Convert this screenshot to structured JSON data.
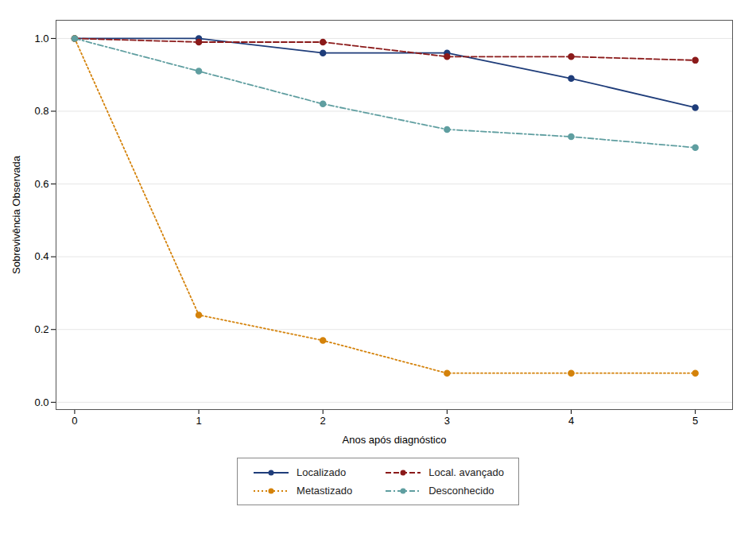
{
  "chart_data": {
    "type": "line",
    "x": [
      0,
      1,
      2,
      3,
      4,
      5
    ],
    "series": [
      {
        "name": "Localizado",
        "color": "#1f3d7a",
        "line_style": "solid",
        "marker": "circle",
        "values": [
          1.0,
          1.0,
          0.96,
          0.96,
          0.89,
          0.81
        ]
      },
      {
        "name": "Local. avançado",
        "color": "#8b1a1a",
        "line_style": "dashed",
        "marker": "circle",
        "values": [
          1.0,
          0.99,
          0.99,
          0.95,
          0.95,
          0.94
        ]
      },
      {
        "name": "Metastizado",
        "color": "#d4820a",
        "line_style": "dotted",
        "marker": "circle",
        "values": [
          1.0,
          0.24,
          0.17,
          0.08,
          0.08,
          0.08
        ]
      },
      {
        "name": "Desconhecido",
        "color": "#5f9ea0",
        "line_style": "dashdot",
        "marker": "circle",
        "values": [
          1.0,
          0.91,
          0.82,
          0.75,
          0.73,
          0.7
        ]
      }
    ],
    "xlabel": "Anos após diagnóstico",
    "ylabel": "Sobrevivência Observada",
    "xlim": [
      -0.15,
      5.3
    ],
    "ylim": [
      -0.02,
      1.05
    ],
    "xticks": [
      0,
      1,
      2,
      3,
      4,
      5
    ],
    "yticks": [
      {
        "value": 0.0,
        "label": "0.0"
      },
      0.2,
      0.4,
      0.6,
      0.8,
      {
        "value": 1.0,
        "label": "1.0"
      }
    ],
    "grid": "y",
    "legend": "bottom"
  }
}
